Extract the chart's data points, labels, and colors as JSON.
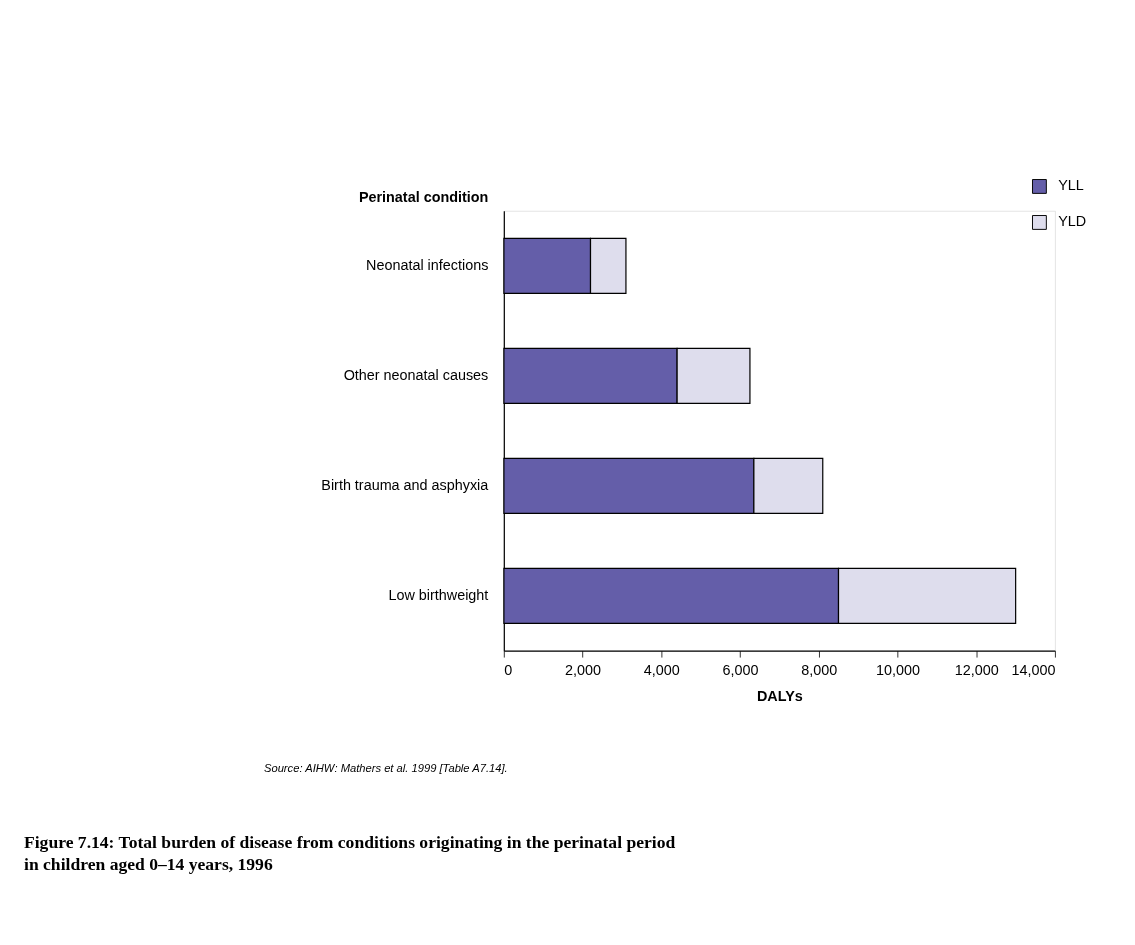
{
  "chart_data": {
    "type": "bar",
    "orientation": "horizontal",
    "stacked": true,
    "title": "Figure 7.14: Total burden of disease from conditions originating in the perinatal period in children aged 0–14 years, 1996",
    "ylabel": "Perinatal condition",
    "xlabel": "DALYs",
    "categories": [
      "Neonatal infections",
      "Other neonatal causes",
      "Birth trauma and asphyxia",
      "Low birthweight"
    ],
    "series": [
      {
        "name": "YLL",
        "color": "#645ea9",
        "values": [
          2200,
          4400,
          6350,
          8500
        ]
      },
      {
        "name": "YLD",
        "color": "#dedded",
        "values": [
          900,
          1850,
          1750,
          4500
        ]
      }
    ],
    "xlim": [
      0,
      14000
    ],
    "xticks": [
      {
        "value": 0,
        "label": "0"
      },
      {
        "value": 2000,
        "label": "2,000"
      },
      {
        "value": 4000,
        "label": "4,000"
      },
      {
        "value": 6000,
        "label": "6,000"
      },
      {
        "value": 8000,
        "label": "8,000"
      },
      {
        "value": 10000,
        "label": "10,000"
      },
      {
        "value": 12000,
        "label": "12,000"
      },
      {
        "value": 14000,
        "label": "14,000"
      }
    ],
    "grid": false,
    "legend": "top right",
    "annotations": [
      "Source: AIHW: Mathers et al. 1999 [Table A7.14]."
    ]
  }
}
